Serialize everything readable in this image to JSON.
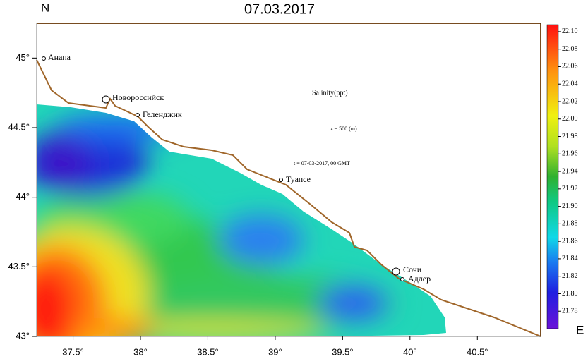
{
  "map": {
    "title": "07.03.2017",
    "north_label": "N",
    "east_label": "E",
    "annotations": {
      "quantity": "Salinity(ppt)",
      "depth": "z = 500 (m)",
      "time": "t = 07-03-2017, 00 GMT"
    },
    "cities": [
      "Анапа",
      "Новороссийск",
      "Геленджик",
      "Туапсе",
      "Сочи",
      "Адлер"
    ],
    "xlim": [
      37.23,
      40.97
    ],
    "ylim": [
      43,
      45.25
    ],
    "xticks": [
      {
        "value": 37.5,
        "label": "37.5°"
      },
      {
        "value": 38,
        "label": "38°"
      },
      {
        "value": 38.5,
        "label": "38.5°"
      },
      {
        "value": 39,
        "label": "39°"
      },
      {
        "value": 39.5,
        "label": "39.5°"
      },
      {
        "value": 40,
        "label": "40°"
      },
      {
        "value": 40.5,
        "label": "40.5°"
      }
    ],
    "yticks": [
      {
        "value": 43,
        "label": "43°"
      },
      {
        "value": 43.5,
        "label": "43.5°"
      },
      {
        "value": 44,
        "label": "44°"
      },
      {
        "value": 44.5,
        "label": "44.5°"
      },
      {
        "value": 45,
        "label": "45°"
      }
    ],
    "colorbar": {
      "zlim": [
        21.76,
        22.108
      ],
      "ticks": [
        21.78,
        {
          "value": 21.8,
          "label": "21.80"
        },
        21.82,
        21.84,
        21.86,
        21.88,
        {
          "value": 21.9,
          "label": "21.90"
        },
        21.92,
        21.94,
        21.96,
        21.98,
        {
          "value": 22,
          "label": "22.00"
        },
        22.02,
        22.04,
        22.06,
        22.08,
        {
          "value": 22.1,
          "label": "22.10"
        }
      ]
    }
  }
}
